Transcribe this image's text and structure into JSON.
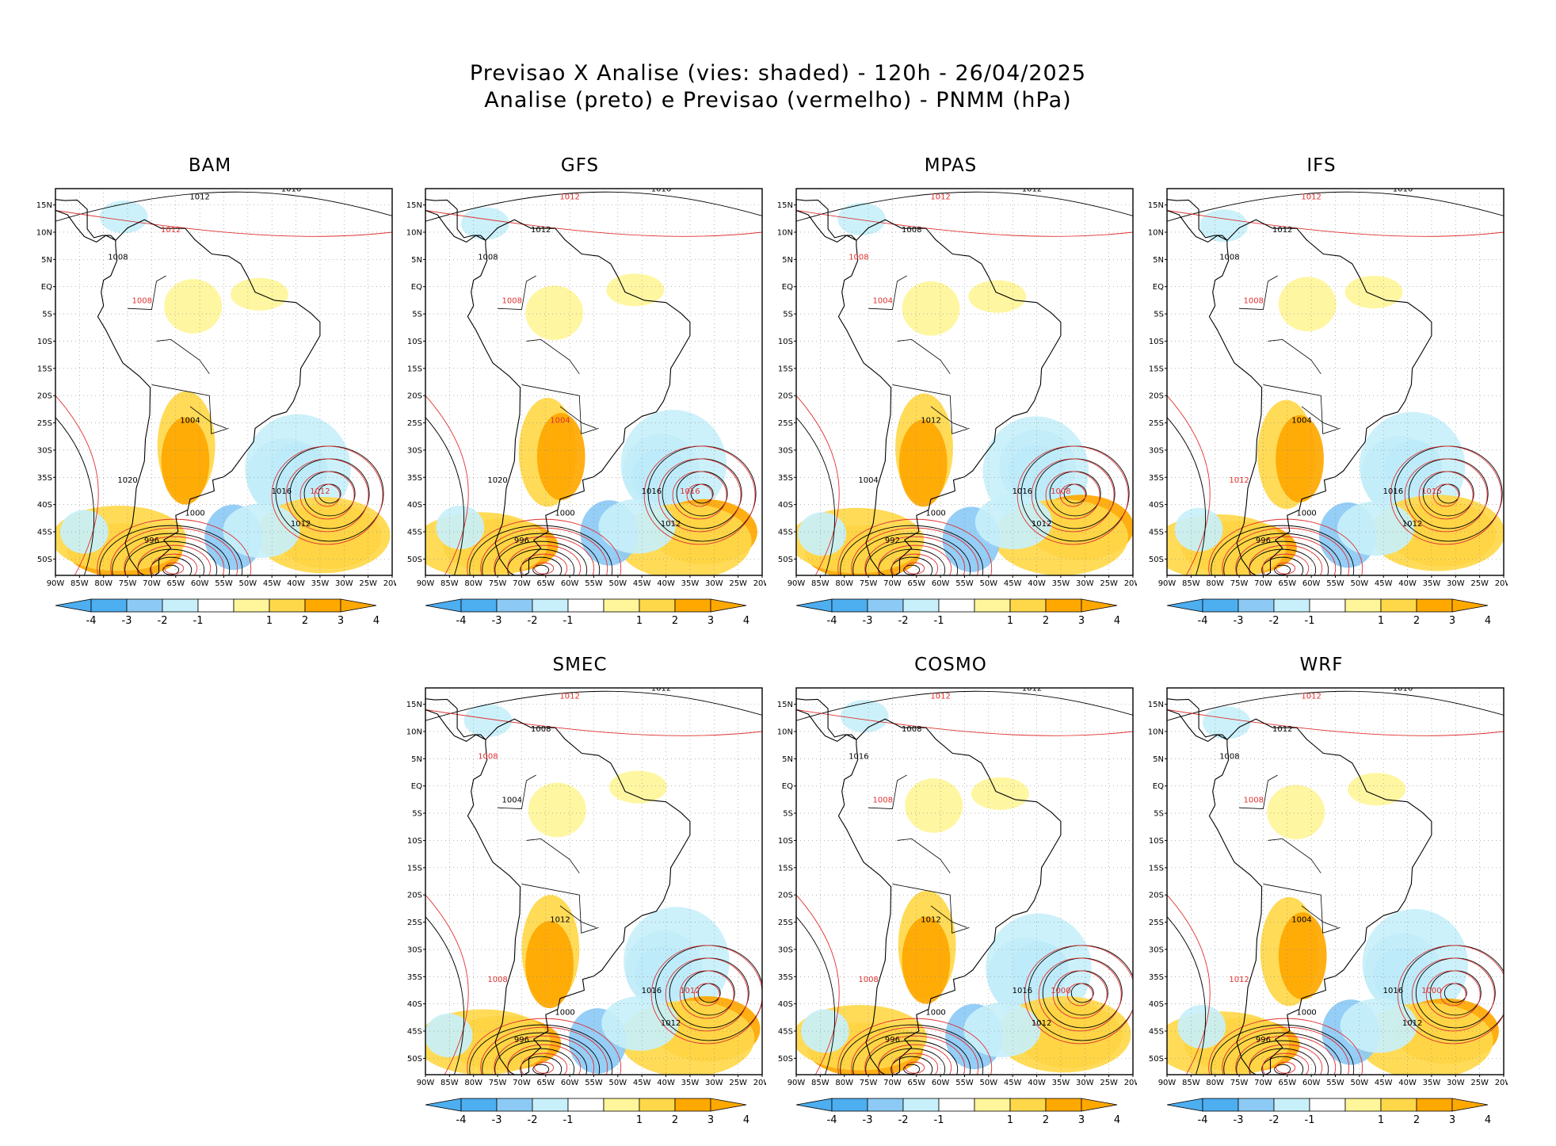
{
  "title_line1": "Previsao X Analise (vies: shaded) - 120h - 26/04/2025",
  "title_line2": "Analise (preto) e Previsao (vermelho) - PNMM (hPa)",
  "colors": {
    "neg4": "#4daef0",
    "neg3": "#8ccaf5",
    "neg2": "#c8f0fa",
    "pos2": "#fff59a",
    "pos3": "#ffd84a",
    "pos4": "#ffa800",
    "analysis": "#000000",
    "forecast": "#e03030",
    "land": "#000000"
  },
  "lat_labels": [
    "15N",
    "10N",
    "5N",
    "EQ",
    "5S",
    "10S",
    "15S",
    "20S",
    "25S",
    "30S",
    "35S",
    "40S",
    "45S",
    "50S"
  ],
  "lon_labels": [
    "90W",
    "85W",
    "80W",
    "75W",
    "70W",
    "65W",
    "60W",
    "55W",
    "50W",
    "45W",
    "40W",
    "35W",
    "30W",
    "25W",
    "20W"
  ],
  "colorbar": {
    "labels": [
      "-4",
      "-3",
      "-2",
      "-1",
      "1",
      "2",
      "3",
      "4"
    ]
  },
  "panels": [
    {
      "name": "BAM",
      "contours": [
        {
          "v": "1016",
          "c": "a"
        },
        {
          "v": "1012",
          "c": "a"
        },
        {
          "v": "1012",
          "c": "f"
        },
        {
          "v": "1008",
          "c": "a"
        },
        {
          "v": "1008",
          "c": "f"
        },
        {
          "v": "1004",
          "c": "a"
        },
        {
          "v": "1000",
          "c": "a"
        },
        {
          "v": "996",
          "c": "a"
        },
        {
          "v": "1016",
          "c": "a"
        },
        {
          "v": "1012",
          "c": "f"
        },
        {
          "v": "1020",
          "c": "a"
        },
        {
          "v": "1012",
          "c": "a"
        }
      ]
    },
    {
      "name": "GFS",
      "contours": [
        {
          "v": "1016",
          "c": "a"
        },
        {
          "v": "1012",
          "c": "f"
        },
        {
          "v": "1012",
          "c": "a"
        },
        {
          "v": "1008",
          "c": "a"
        },
        {
          "v": "1008",
          "c": "f"
        },
        {
          "v": "1004",
          "c": "f"
        },
        {
          "v": "1000",
          "c": "a"
        },
        {
          "v": "996",
          "c": "a"
        },
        {
          "v": "1016",
          "c": "a"
        },
        {
          "v": "1016",
          "c": "f"
        },
        {
          "v": "1020",
          "c": "a"
        },
        {
          "v": "1012",
          "c": "a"
        }
      ]
    },
    {
      "name": "MPAS",
      "contours": [
        {
          "v": "1012",
          "c": "a"
        },
        {
          "v": "1012",
          "c": "f"
        },
        {
          "v": "1008",
          "c": "a"
        },
        {
          "v": "1008",
          "c": "f"
        },
        {
          "v": "1004",
          "c": "f"
        },
        {
          "v": "1012",
          "c": "a"
        },
        {
          "v": "1000",
          "c": "a"
        },
        {
          "v": "992",
          "c": "a"
        },
        {
          "v": "1016",
          "c": "a"
        },
        {
          "v": "1008",
          "c": "f"
        },
        {
          "v": "1004",
          "c": "a"
        },
        {
          "v": "1012",
          "c": "a"
        }
      ]
    },
    {
      "name": "IFS",
      "contours": [
        {
          "v": "1016",
          "c": "a"
        },
        {
          "v": "1012",
          "c": "f"
        },
        {
          "v": "1012",
          "c": "a"
        },
        {
          "v": "1008",
          "c": "a"
        },
        {
          "v": "1008",
          "c": "f"
        },
        {
          "v": "1004",
          "c": "a"
        },
        {
          "v": "1000",
          "c": "a"
        },
        {
          "v": "996",
          "c": "a"
        },
        {
          "v": "1016",
          "c": "a"
        },
        {
          "v": "1016",
          "c": "f"
        },
        {
          "v": "1012",
          "c": "f"
        },
        {
          "v": "1012",
          "c": "a"
        }
      ]
    },
    {
      "name": "SMEC",
      "contours": [
        {
          "v": "1012",
          "c": "a"
        },
        {
          "v": "1012",
          "c": "f"
        },
        {
          "v": "1008",
          "c": "a"
        },
        {
          "v": "1008",
          "c": "f"
        },
        {
          "v": "1004",
          "c": "a"
        },
        {
          "v": "1012",
          "c": "a"
        },
        {
          "v": "1000",
          "c": "a"
        },
        {
          "v": "996",
          "c": "a"
        },
        {
          "v": "1016",
          "c": "a"
        },
        {
          "v": "1012",
          "c": "f"
        },
        {
          "v": "1008",
          "c": "f"
        },
        {
          "v": "1012",
          "c": "a"
        }
      ]
    },
    {
      "name": "COSMO",
      "contours": [
        {
          "v": "1012",
          "c": "a"
        },
        {
          "v": "1012",
          "c": "f"
        },
        {
          "v": "1008",
          "c": "a"
        },
        {
          "v": "1016",
          "c": "a"
        },
        {
          "v": "1008",
          "c": "f"
        },
        {
          "v": "1012",
          "c": "a"
        },
        {
          "v": "1000",
          "c": "a"
        },
        {
          "v": "996",
          "c": "a"
        },
        {
          "v": "1016",
          "c": "a"
        },
        {
          "v": "1000",
          "c": "f"
        },
        {
          "v": "1008",
          "c": "f"
        },
        {
          "v": "1012",
          "c": "a"
        }
      ]
    },
    {
      "name": "WRF",
      "contours": [
        {
          "v": "1016",
          "c": "a"
        },
        {
          "v": "1012",
          "c": "f"
        },
        {
          "v": "1012",
          "c": "a"
        },
        {
          "v": "1008",
          "c": "a"
        },
        {
          "v": "1008",
          "c": "f"
        },
        {
          "v": "1004",
          "c": "a"
        },
        {
          "v": "1000",
          "c": "a"
        },
        {
          "v": "996",
          "c": "a"
        },
        {
          "v": "1016",
          "c": "a"
        },
        {
          "v": "1000",
          "c": "f"
        },
        {
          "v": "1012",
          "c": "f"
        },
        {
          "v": "1012",
          "c": "a"
        }
      ]
    }
  ]
}
